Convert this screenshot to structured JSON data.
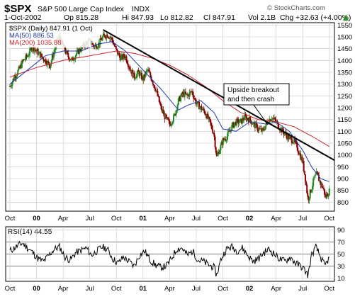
{
  "header": {
    "symbol": "$SPX",
    "name": "S&P 500 Large Cap Index",
    "exchange": "INDX",
    "date": "1-Oct-2002",
    "open": "Op 815.28",
    "high": "Hi 847.93",
    "low": "Lo 812.82",
    "close": "Cl 847.91",
    "volume": "Vol 2.1B",
    "change": "Chg +32.63 (+4.00%)",
    "change_arrow": "triangle-up-icon",
    "brand": "© StockCharts.com"
  },
  "colors": {
    "candle_up": "#228B22",
    "candle_down": "#8B0000",
    "ma50": "#1f3aa8",
    "ma200": "#cc1f2f",
    "trendline": "#000000",
    "rsi": "#000000",
    "grid": "#c8c8c8"
  },
  "annotation": "Upside breakout\nand then crash",
  "chart_data": [
    {
      "type": "candlestick",
      "title": "$SPX (Daily) 847.91 (1 Oct)",
      "legend_placement": "top-left",
      "legend": [
        {
          "label": "$SPX (Daily) 847.91 (1 Oct)",
          "color": "#000000"
        },
        {
          "label": "MA(50) 886.53",
          "color": "#1f3aa8"
        },
        {
          "label": "MA(200) 1035.88",
          "color": "#cc1f2f"
        }
      ],
      "x_ticks": [
        "Oct",
        "00",
        "Apr",
        "Jul",
        "Oct",
        "01",
        "Apr",
        "Jul",
        "Oct",
        "02",
        "Apr",
        "Jul",
        "Oct"
      ],
      "x_tick_months": [
        0,
        3,
        6,
        9,
        12,
        15,
        18,
        21,
        24,
        27,
        30,
        33,
        36
      ],
      "bold_x_ticks": [
        "00",
        "01",
        "02"
      ],
      "y_ticks": [
        800,
        850,
        900,
        950,
        1000,
        1050,
        1100,
        1150,
        1200,
        1250,
        1300,
        1350,
        1400,
        1450,
        1500,
        1550
      ],
      "ylim": [
        762,
        1560
      ],
      "xlim_months": [
        0,
        36.1
      ],
      "grid": true,
      "price_series": [
        {
          "m": 0.0,
          "v": 1290
        },
        {
          "m": 0.5,
          "v": 1330
        },
        {
          "m": 1.0,
          "v": 1360
        },
        {
          "m": 1.5,
          "v": 1400
        },
        {
          "m": 2.0,
          "v": 1420
        },
        {
          "m": 2.5,
          "v": 1460
        },
        {
          "m": 3.0,
          "v": 1440
        },
        {
          "m": 3.5,
          "v": 1420
        },
        {
          "m": 4.0,
          "v": 1400
        },
        {
          "m": 4.5,
          "v": 1380
        },
        {
          "m": 5.0,
          "v": 1440
        },
        {
          "m": 5.5,
          "v": 1500
        },
        {
          "m": 6.0,
          "v": 1460
        },
        {
          "m": 6.5,
          "v": 1420
        },
        {
          "m": 7.0,
          "v": 1400
        },
        {
          "m": 7.5,
          "v": 1430
        },
        {
          "m": 8.0,
          "v": 1450
        },
        {
          "m": 8.5,
          "v": 1470
        },
        {
          "m": 9.0,
          "v": 1480
        },
        {
          "m": 9.5,
          "v": 1460
        },
        {
          "m": 10.0,
          "v": 1470
        },
        {
          "m": 10.5,
          "v": 1500
        },
        {
          "m": 11.0,
          "v": 1510
        },
        {
          "m": 11.5,
          "v": 1490
        },
        {
          "m": 12.0,
          "v": 1440
        },
        {
          "m": 12.5,
          "v": 1410
        },
        {
          "m": 13.0,
          "v": 1420
        },
        {
          "m": 13.5,
          "v": 1370
        },
        {
          "m": 14.0,
          "v": 1330
        },
        {
          "m": 14.5,
          "v": 1350
        },
        {
          "m": 15.0,
          "v": 1320
        },
        {
          "m": 15.5,
          "v": 1360
        },
        {
          "m": 16.0,
          "v": 1320
        },
        {
          "m": 16.5,
          "v": 1270
        },
        {
          "m": 17.0,
          "v": 1200
        },
        {
          "m": 17.5,
          "v": 1160
        },
        {
          "m": 18.0,
          "v": 1130
        },
        {
          "m": 18.5,
          "v": 1160
        },
        {
          "m": 19.0,
          "v": 1230
        },
        {
          "m": 19.5,
          "v": 1260
        },
        {
          "m": 20.0,
          "v": 1250
        },
        {
          "m": 20.5,
          "v": 1270
        },
        {
          "m": 21.0,
          "v": 1220
        },
        {
          "m": 21.5,
          "v": 1200
        },
        {
          "m": 22.0,
          "v": 1180
        },
        {
          "m": 22.5,
          "v": 1140
        },
        {
          "m": 23.0,
          "v": 1090
        },
        {
          "m": 23.3,
          "v": 990
        },
        {
          "m": 23.6,
          "v": 1020
        },
        {
          "m": 24.0,
          "v": 1060
        },
        {
          "m": 24.5,
          "v": 1080
        },
        {
          "m": 25.0,
          "v": 1120
        },
        {
          "m": 25.5,
          "v": 1140
        },
        {
          "m": 26.0,
          "v": 1140
        },
        {
          "m": 26.5,
          "v": 1160
        },
        {
          "m": 27.0,
          "v": 1150
        },
        {
          "m": 27.5,
          "v": 1130
        },
        {
          "m": 28.0,
          "v": 1110
        },
        {
          "m": 28.5,
          "v": 1100
        },
        {
          "m": 29.0,
          "v": 1140
        },
        {
          "m": 29.5,
          "v": 1160
        },
        {
          "m": 30.0,
          "v": 1140
        },
        {
          "m": 30.5,
          "v": 1110
        },
        {
          "m": 31.0,
          "v": 1090
        },
        {
          "m": 31.5,
          "v": 1070
        },
        {
          "m": 32.0,
          "v": 1060
        },
        {
          "m": 32.5,
          "v": 1020
        },
        {
          "m": 33.0,
          "v": 970
        },
        {
          "m": 33.3,
          "v": 900
        },
        {
          "m": 33.6,
          "v": 810
        },
        {
          "m": 34.0,
          "v": 860
        },
        {
          "m": 34.3,
          "v": 900
        },
        {
          "m": 34.6,
          "v": 920
        },
        {
          "m": 35.0,
          "v": 880
        },
        {
          "m": 35.3,
          "v": 860
        },
        {
          "m": 35.6,
          "v": 820
        },
        {
          "m": 36.0,
          "v": 848
        }
      ],
      "ma50_series": [
        {
          "m": 0.0,
          "v": 1300
        },
        {
          "m": 2.0,
          "v": 1360
        },
        {
          "m": 4.0,
          "v": 1420
        },
        {
          "m": 6.0,
          "v": 1440
        },
        {
          "m": 8.0,
          "v": 1440
        },
        {
          "m": 10.0,
          "v": 1470
        },
        {
          "m": 11.5,
          "v": 1480
        },
        {
          "m": 13.0,
          "v": 1440
        },
        {
          "m": 15.0,
          "v": 1360
        },
        {
          "m": 17.0,
          "v": 1280
        },
        {
          "m": 19.0,
          "v": 1190
        },
        {
          "m": 20.0,
          "v": 1210
        },
        {
          "m": 21.5,
          "v": 1230
        },
        {
          "m": 23.0,
          "v": 1180
        },
        {
          "m": 24.0,
          "v": 1110
        },
        {
          "m": 25.5,
          "v": 1100
        },
        {
          "m": 27.0,
          "v": 1140
        },
        {
          "m": 29.0,
          "v": 1130
        },
        {
          "m": 30.0,
          "v": 1140
        },
        {
          "m": 31.5,
          "v": 1100
        },
        {
          "m": 33.0,
          "v": 1020
        },
        {
          "m": 34.0,
          "v": 950
        },
        {
          "m": 35.0,
          "v": 900
        },
        {
          "m": 36.0,
          "v": 887
        }
      ],
      "ma200_series": [
        {
          "m": 0.0,
          "v": 1330
        },
        {
          "m": 3.0,
          "v": 1370
        },
        {
          "m": 6.0,
          "v": 1400
        },
        {
          "m": 9.0,
          "v": 1420
        },
        {
          "m": 12.0,
          "v": 1440
        },
        {
          "m": 14.0,
          "v": 1430
        },
        {
          "m": 16.0,
          "v": 1410
        },
        {
          "m": 18.0,
          "v": 1380
        },
        {
          "m": 20.0,
          "v": 1340
        },
        {
          "m": 22.0,
          "v": 1290
        },
        {
          "m": 24.0,
          "v": 1230
        },
        {
          "m": 26.0,
          "v": 1180
        },
        {
          "m": 28.0,
          "v": 1150
        },
        {
          "m": 30.0,
          "v": 1140
        },
        {
          "m": 32.0,
          "v": 1120
        },
        {
          "m": 34.0,
          "v": 1080
        },
        {
          "m": 36.0,
          "v": 1036
        }
      ],
      "trendline": [
        {
          "m": 10.5,
          "v": 1530
        },
        {
          "m": 36.5,
          "v": 970
        }
      ]
    },
    {
      "type": "line",
      "title": "RSI(14) 44.55",
      "y_ticks": [
        10,
        30,
        50,
        70,
        90
      ],
      "reference_lines": [
        30,
        50,
        70
      ],
      "ylim": [
        5,
        95
      ],
      "grid": true,
      "rsi_series": [
        {
          "m": 0.0,
          "v": 55
        },
        {
          "m": 0.7,
          "v": 62
        },
        {
          "m": 1.4,
          "v": 68
        },
        {
          "m": 2.0,
          "v": 60
        },
        {
          "m": 2.6,
          "v": 52
        },
        {
          "m": 3.2,
          "v": 42
        },
        {
          "m": 3.8,
          "v": 38
        },
        {
          "m": 4.4,
          "v": 48
        },
        {
          "m": 5.0,
          "v": 58
        },
        {
          "m": 5.6,
          "v": 62
        },
        {
          "m": 6.2,
          "v": 45
        },
        {
          "m": 6.8,
          "v": 40
        },
        {
          "m": 7.4,
          "v": 52
        },
        {
          "m": 8.0,
          "v": 56
        },
        {
          "m": 8.6,
          "v": 60
        },
        {
          "m": 9.2,
          "v": 48
        },
        {
          "m": 9.8,
          "v": 55
        },
        {
          "m": 10.4,
          "v": 62
        },
        {
          "m": 11.0,
          "v": 58
        },
        {
          "m": 11.6,
          "v": 42
        },
        {
          "m": 12.2,
          "v": 35
        },
        {
          "m": 12.8,
          "v": 45
        },
        {
          "m": 13.4,
          "v": 38
        },
        {
          "m": 14.0,
          "v": 30
        },
        {
          "m": 14.6,
          "v": 48
        },
        {
          "m": 15.2,
          "v": 55
        },
        {
          "m": 15.8,
          "v": 40
        },
        {
          "m": 16.4,
          "v": 32
        },
        {
          "m": 17.0,
          "v": 28
        },
        {
          "m": 17.6,
          "v": 30
        },
        {
          "m": 18.2,
          "v": 42
        },
        {
          "m": 18.8,
          "v": 58
        },
        {
          "m": 19.4,
          "v": 60
        },
        {
          "m": 20.0,
          "v": 48
        },
        {
          "m": 20.6,
          "v": 55
        },
        {
          "m": 21.2,
          "v": 40
        },
        {
          "m": 21.8,
          "v": 38
        },
        {
          "m": 22.4,
          "v": 32
        },
        {
          "m": 23.0,
          "v": 28
        },
        {
          "m": 23.3,
          "v": 15
        },
        {
          "m": 23.8,
          "v": 42
        },
        {
          "m": 24.4,
          "v": 58
        },
        {
          "m": 25.0,
          "v": 62
        },
        {
          "m": 25.6,
          "v": 55
        },
        {
          "m": 26.2,
          "v": 60
        },
        {
          "m": 26.8,
          "v": 48
        },
        {
          "m": 27.4,
          "v": 38
        },
        {
          "m": 28.0,
          "v": 42
        },
        {
          "m": 28.6,
          "v": 52
        },
        {
          "m": 29.2,
          "v": 58
        },
        {
          "m": 29.8,
          "v": 50
        },
        {
          "m": 30.4,
          "v": 42
        },
        {
          "m": 31.0,
          "v": 38
        },
        {
          "m": 31.6,
          "v": 45
        },
        {
          "m": 32.2,
          "v": 35
        },
        {
          "m": 32.8,
          "v": 30
        },
        {
          "m": 33.3,
          "v": 22
        },
        {
          "m": 33.6,
          "v": 15
        },
        {
          "m": 34.0,
          "v": 48
        },
        {
          "m": 34.5,
          "v": 62
        },
        {
          "m": 35.0,
          "v": 45
        },
        {
          "m": 35.5,
          "v": 30
        },
        {
          "m": 36.0,
          "v": 44.55
        }
      ]
    }
  ]
}
